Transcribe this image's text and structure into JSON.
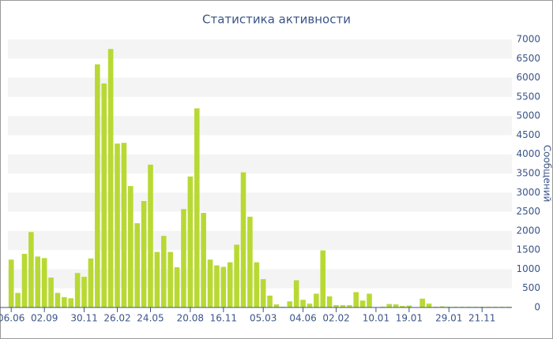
{
  "chart_data": {
    "type": "bar",
    "title": "Статистика активности",
    "y_label": "Сообщений",
    "color": "#b8d934",
    "categories": [
      "06.06",
      null,
      null,
      null,
      null,
      "02.09",
      null,
      null,
      null,
      null,
      null,
      "30.11",
      null,
      null,
      null,
      null,
      "26.02",
      null,
      null,
      null,
      null,
      "24.05",
      null,
      null,
      null,
      null,
      null,
      "20.08",
      null,
      null,
      null,
      null,
      "16.11",
      null,
      null,
      null,
      null,
      null,
      "05.03",
      null,
      null,
      null,
      null,
      null,
      "04.06",
      null,
      null,
      null,
      null,
      "02.02",
      null,
      null,
      null,
      null,
      null,
      "10.01",
      null,
      null,
      null,
      null,
      "19.01",
      null,
      null,
      null,
      null,
      null,
      "29.01",
      null,
      null,
      null,
      null,
      "21.11",
      null,
      null,
      null,
      null
    ],
    "values": [
      1250,
      380,
      1400,
      1970,
      1330,
      1290,
      780,
      380,
      270,
      240,
      900,
      800,
      1280,
      6350,
      5850,
      6750,
      4280,
      4300,
      3170,
      2200,
      2780,
      3730,
      1450,
      1870,
      1450,
      1050,
      2570,
      3420,
      5200,
      2470,
      1250,
      1100,
      1060,
      1180,
      1640,
      3530,
      2370,
      1180,
      740,
      310,
      80,
      20,
      160,
      710,
      200,
      100,
      360,
      1490,
      290,
      60,
      60,
      60,
      400,
      180,
      360,
      10,
      20,
      90,
      80,
      40,
      50,
      10,
      230,
      100,
      20,
      30,
      20,
      20,
      20,
      20,
      20,
      20,
      20,
      20,
      20,
      20
    ],
    "ylim": [
      0,
      7000
    ],
    "yticks": [
      0,
      500,
      1000,
      1500,
      2000,
      2500,
      3000,
      3500,
      4000,
      4500,
      5000,
      5500,
      6000,
      6500,
      7000
    ],
    "grid": true
  }
}
